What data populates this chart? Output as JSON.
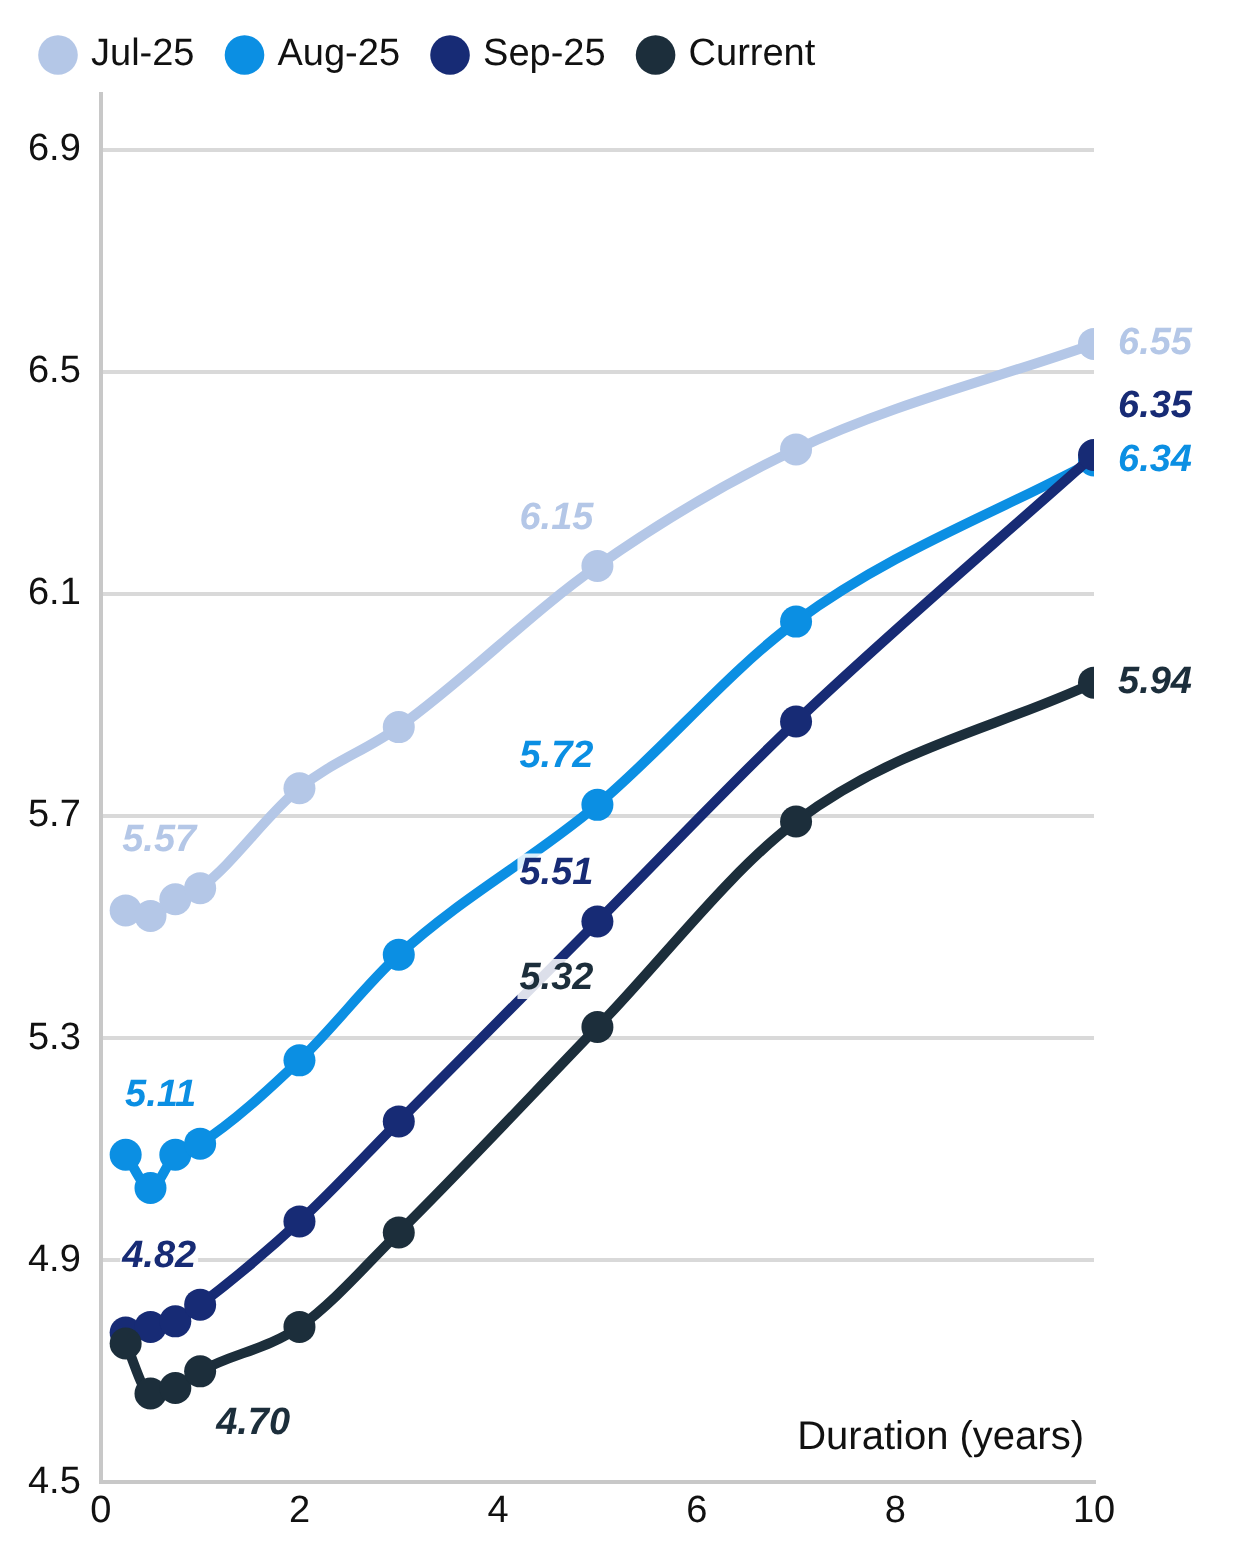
{
  "chart_data": {
    "type": "line",
    "xlabel": "Duration (years)",
    "x": [
      0.25,
      0.5,
      0.75,
      1,
      2,
      3,
      5,
      7,
      10
    ],
    "series": [
      {
        "name": "Jul-25",
        "color": "#b4c7e7",
        "values": [
          5.53,
          5.52,
          5.55,
          5.57,
          5.75,
          5.86,
          6.15,
          6.36,
          6.55
        ],
        "value_labels": [
          null,
          null,
          null,
          "5.57",
          null,
          null,
          "6.15",
          null,
          "6.55"
        ]
      },
      {
        "name": "Aug-25",
        "color": "#0b8fe3",
        "values": [
          5.09,
          5.03,
          5.09,
          5.11,
          5.26,
          5.45,
          5.72,
          6.05,
          6.34
        ],
        "value_labels": [
          null,
          null,
          null,
          "5.11",
          null,
          null,
          "5.72",
          null,
          "6.34"
        ]
      },
      {
        "name": "Sep-25",
        "color": "#172b75",
        "values": [
          4.77,
          4.78,
          4.79,
          4.82,
          4.97,
          5.15,
          5.51,
          5.87,
          6.35
        ],
        "value_labels": [
          null,
          null,
          null,
          "4.82",
          null,
          null,
          "5.51",
          null,
          "6.35"
        ]
      },
      {
        "name": "Current",
        "color": "#1c2e3b",
        "values": [
          4.75,
          4.66,
          4.67,
          4.7,
          4.78,
          4.95,
          5.32,
          5.69,
          5.94
        ],
        "value_labels": [
          null,
          null,
          null,
          "4.70",
          null,
          null,
          "5.32",
          null,
          "5.94"
        ]
      }
    ],
    "xlim": [
      0,
      10
    ],
    "xticks": [
      0,
      2,
      4,
      6,
      8,
      10
    ],
    "ylim": [
      4.5,
      7.0
    ],
    "yticks": [
      4.5,
      4.9,
      5.3,
      5.7,
      6.1,
      6.5,
      6.9
    ],
    "grid": "y",
    "legend": "top",
    "marker": "circle",
    "line_style": "solid"
  }
}
